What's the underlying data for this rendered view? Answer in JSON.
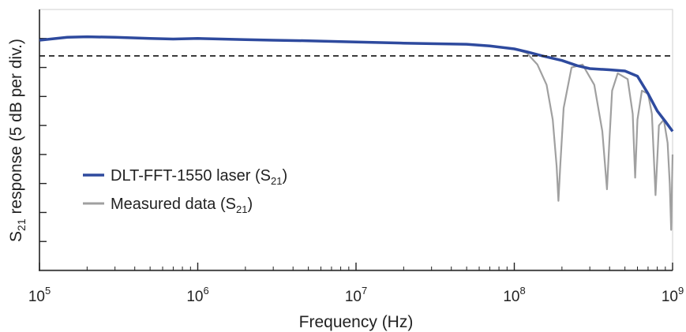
{
  "chart_data": {
    "type": "line",
    "xscale": "log",
    "xlim": [
      100000,
      1000000000
    ],
    "ylim": [
      -40,
      5
    ],
    "xlabel": "Frequency (Hz)",
    "ylabel_main": "S",
    "ylabel_sub": "21",
    "ylabel_rest": " response (5 dB per div.)",
    "x_tick_labels": [
      {
        "value": 100000,
        "base": "10",
        "exp": "5"
      },
      {
        "value": 1000000,
        "base": "10",
        "exp": "6"
      },
      {
        "value": 10000000,
        "base": "10",
        "exp": "7"
      },
      {
        "value": 100000000,
        "base": "10",
        "exp": "8"
      },
      {
        "value": 1000000000,
        "base": "10",
        "exp": "9"
      }
    ],
    "y_ticks": [
      -35,
      -30,
      -25,
      -20,
      -15,
      -10,
      -5,
      0
    ],
    "reference_line": {
      "y": -3,
      "style": "dashed",
      "color": "#222222"
    },
    "grid": false,
    "legend_position": "left",
    "series": [
      {
        "name": "DLT-FFT-1550 laser",
        "name_sub": "21",
        "color": "#2e4a9e",
        "x": [
          100000,
          150000,
          200000,
          300000,
          500000,
          700000,
          1000000,
          2000000,
          3000000,
          5000000,
          10000000,
          20000000,
          30000000,
          50000000,
          70000000,
          100000000,
          120000000,
          150000000,
          200000000,
          250000000,
          300000000,
          400000000,
          500000000,
          600000000,
          700000000,
          800000000,
          900000000,
          1000000000
        ],
        "y": [
          -0.3,
          0.2,
          0.3,
          0.2,
          0.0,
          -0.1,
          0.0,
          -0.2,
          -0.3,
          -0.4,
          -0.6,
          -0.8,
          -0.9,
          -1.0,
          -1.3,
          -1.8,
          -2.3,
          -3.0,
          -3.8,
          -4.7,
          -5.2,
          -5.4,
          -5.6,
          -6.5,
          -9.5,
          -12.5,
          -14.3,
          -16.0
        ]
      },
      {
        "name": "Measured data",
        "name_sub": "21",
        "color": "#a0a0a0",
        "x": [
          100000,
          150000,
          200000,
          300000,
          500000,
          700000,
          1000000,
          2000000,
          3000000,
          5000000,
          10000000,
          20000000,
          30000000,
          50000000,
          70000000,
          100000000,
          120000000,
          140000000,
          160000000,
          175000000,
          185000000,
          190000000,
          195000000,
          205000000,
          230000000,
          270000000,
          320000000,
          360000000,
          385000000,
          400000000,
          415000000,
          450000000,
          520000000,
          560000000,
          580000000,
          600000000,
          640000000,
          700000000,
          740000000,
          760000000,
          780000000,
          820000000,
          880000000,
          930000000,
          960000000,
          980000000,
          1000000000
        ],
        "y": [
          -0.3,
          0.2,
          0.3,
          0.2,
          0.0,
          -0.1,
          0.0,
          -0.2,
          -0.3,
          -0.4,
          -0.6,
          -0.8,
          -0.9,
          -1.0,
          -1.3,
          -1.8,
          -2.5,
          -4.5,
          -8.0,
          -14.0,
          -22.0,
          -28.0,
          -22.0,
          -12.0,
          -5.0,
          -4.5,
          -8.0,
          -16.0,
          -26.0,
          -17.0,
          -9.0,
          -6.0,
          -7.0,
          -13.0,
          -24.0,
          -14.0,
          -9.0,
          -9.5,
          -13.0,
          -20.0,
          -27.0,
          -15.0,
          -14.0,
          -18.0,
          -25.0,
          -33.0,
          -20.0
        ]
      }
    ]
  }
}
